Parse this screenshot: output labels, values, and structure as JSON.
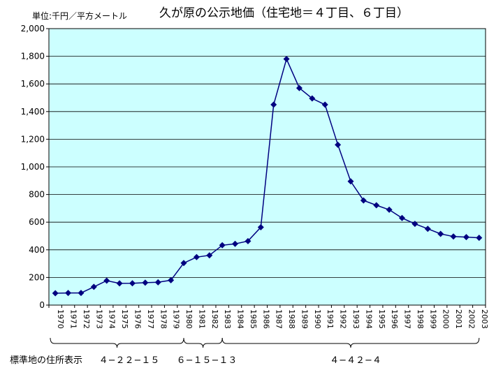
{
  "chart_data": {
    "type": "line",
    "title": "久が原の公示地価（住宅地＝４丁目、６丁目）",
    "unit_label": "単位:千円／平方メートル",
    "xlabel": "",
    "ylabel": "",
    "ylim": [
      0,
      2000
    ],
    "yticks": [
      "0",
      "200",
      "400",
      "600",
      "800",
      "1,000",
      "1,200",
      "1,400",
      "1,600",
      "1,800",
      "2,000"
    ],
    "grid": true,
    "legend": "none",
    "categories": [
      "1970",
      "1971",
      "1972",
      "1973",
      "1974",
      "1975",
      "1976",
      "1977",
      "1978",
      "1979",
      "1980",
      "1981",
      "1982",
      "1983",
      "1984",
      "1985",
      "1986",
      "1987",
      "1988",
      "1989",
      "1990",
      "1991",
      "1992",
      "1993",
      "1994",
      "1995",
      "1996",
      "1997",
      "1998",
      "1999",
      "2000",
      "2001",
      "2002",
      "2003"
    ],
    "series": [
      {
        "values": [
          86,
          88,
          88,
          132,
          177,
          157,
          158,
          162,
          165,
          180,
          304,
          347,
          360,
          433,
          443,
          463,
          563,
          1450,
          1780,
          1570,
          1495,
          1450,
          1160,
          895,
          757,
          722,
          690,
          630,
          588,
          552,
          515,
          496,
          492,
          487
        ]
      }
    ],
    "address_label": "標準地の住所表示",
    "address_groups": [
      {
        "label": "４−２２−１５",
        "from": "1970",
        "to": "1980"
      },
      {
        "label": "６−１５−１３",
        "from": "1980",
        "to": "1983"
      },
      {
        "label": "４−４２−４",
        "from": "1983",
        "to": "2003"
      }
    ],
    "colors": {
      "plot_background": "#ccffff",
      "line": "#000080",
      "marker": "#000080",
      "grid": "#000000"
    }
  }
}
